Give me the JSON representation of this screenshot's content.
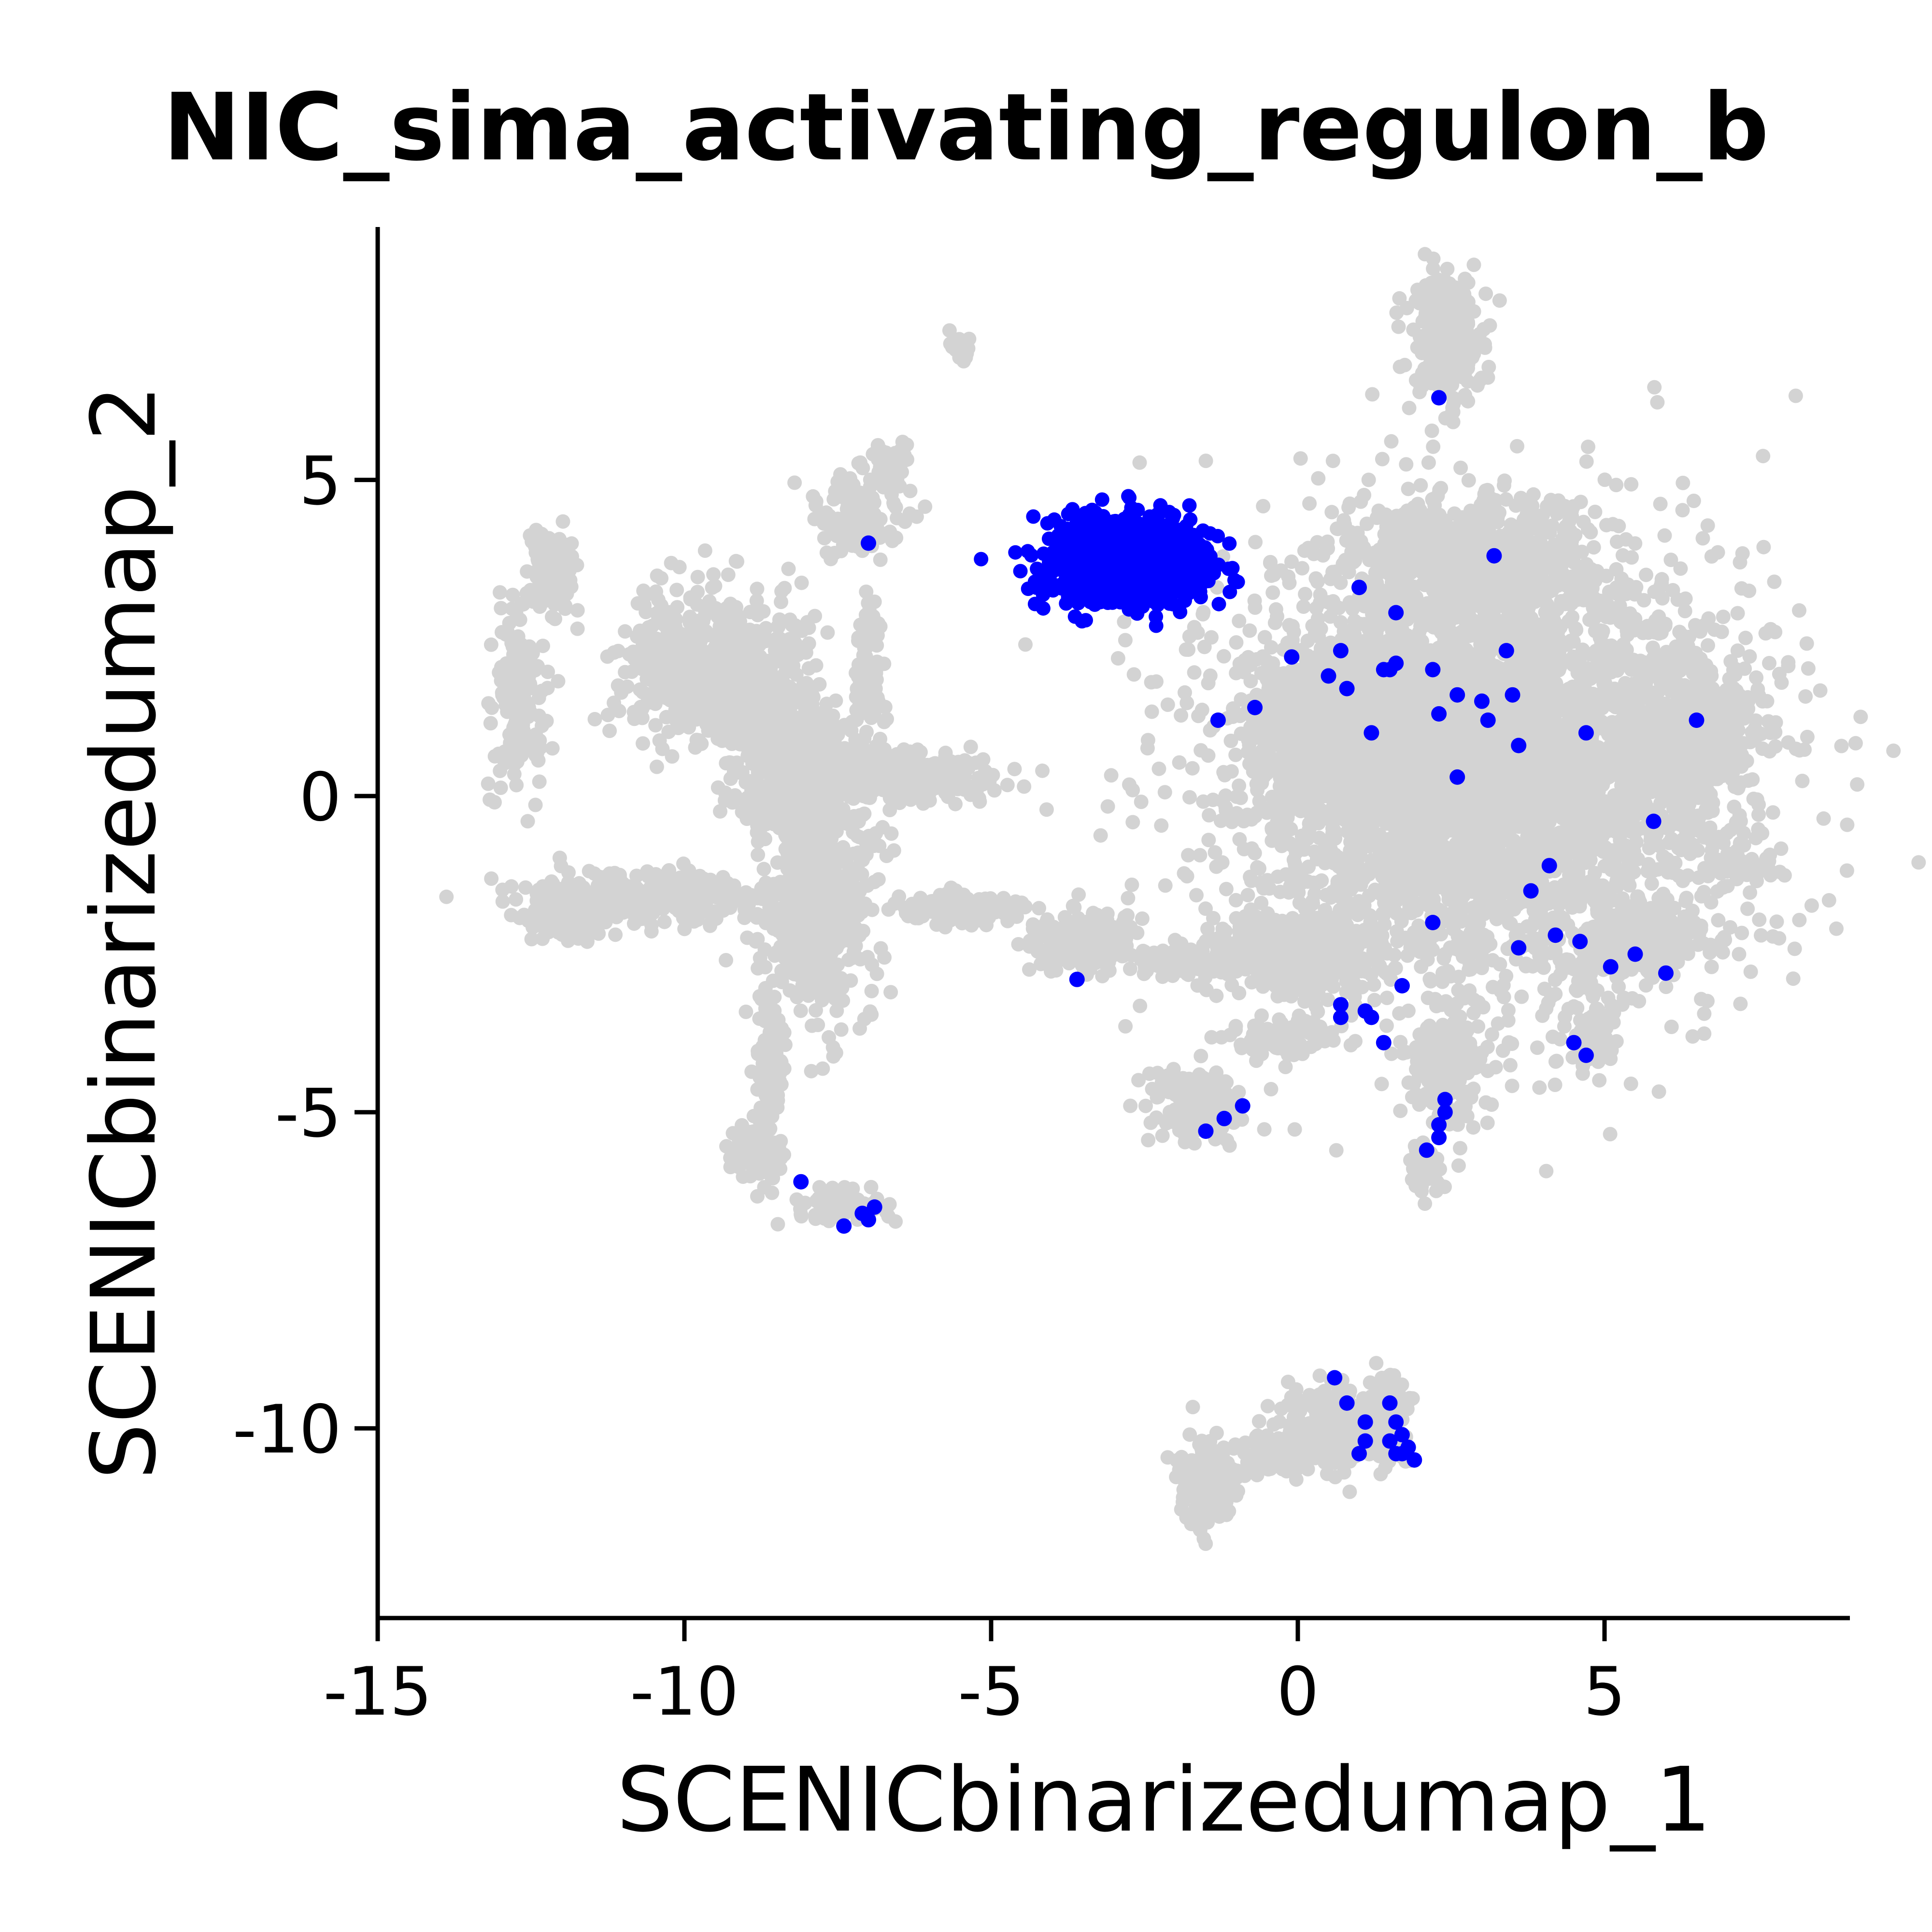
{
  "chart_data": {
    "type": "scatter",
    "title": "NIC_sima_activating_regulon_b",
    "xlabel": "SCENICbinarizedumap_1",
    "ylabel": "SCENICbinarizedumap_2",
    "xlim": [
      -15,
      9
    ],
    "ylim": [
      -13,
      9
    ],
    "x_ticks": [
      -15,
      -10,
      -5,
      0,
      5
    ],
    "x_tick_labels": [
      "-15",
      "-10",
      "-5",
      "0",
      "5"
    ],
    "y_ticks": [
      -10,
      -5,
      0,
      5
    ],
    "y_tick_labels": [
      "-10",
      "-5",
      "0",
      "5"
    ],
    "grid": false,
    "legend": "none",
    "colors": {
      "inactive": "#d3d3d3",
      "active": "#0000ff"
    },
    "series": [
      {
        "status": "inactive",
        "clusters": [
          {
            "cx": 2.4,
            "cy": 7.2,
            "rx": 0.55,
            "ry": 0.9,
            "n": 260
          },
          {
            "cx": -5.5,
            "cy": 7.1,
            "rx": 0.15,
            "ry": 0.25,
            "n": 25
          },
          {
            "cx": -7.2,
            "cy": 4.4,
            "rx": 0.7,
            "ry": 0.6,
            "n": 140
          },
          {
            "cx": -6.6,
            "cy": 5.3,
            "rx": 0.3,
            "ry": 0.3,
            "n": 40
          },
          {
            "cx": -12.2,
            "cy": 3.6,
            "rx": 0.35,
            "ry": 0.6,
            "n": 120
          },
          {
            "cx": -12.7,
            "cy": 1.5,
            "rx": 0.4,
            "ry": 1.2,
            "n": 180
          },
          {
            "cx": -9.5,
            "cy": 2.0,
            "rx": 1.3,
            "ry": 1.1,
            "n": 700
          },
          {
            "cx": -8.2,
            "cy": 0.5,
            "rx": 1.1,
            "ry": 1.0,
            "n": 500
          },
          {
            "cx": -7.8,
            "cy": -1.8,
            "rx": 0.8,
            "ry": 1.5,
            "n": 550
          },
          {
            "cx": -10.5,
            "cy": -1.6,
            "rx": 1.8,
            "ry": 0.35,
            "n": 320
          },
          {
            "cx": -12.0,
            "cy": -2.0,
            "rx": 0.6,
            "ry": 0.25,
            "n": 90
          },
          {
            "cx": -6.5,
            "cy": 0.3,
            "rx": 1.5,
            "ry": 0.35,
            "n": 260
          },
          {
            "cx": -7.0,
            "cy": 2.0,
            "rx": 0.2,
            "ry": 1.2,
            "n": 90
          },
          {
            "cx": -5.5,
            "cy": -1.8,
            "rx": 1.0,
            "ry": 0.25,
            "n": 120
          },
          {
            "cx": -3.5,
            "cy": -2.3,
            "rx": 0.8,
            "ry": 0.4,
            "n": 240
          },
          {
            "cx": -2.0,
            "cy": -2.6,
            "rx": 0.8,
            "ry": 0.2,
            "n": 100
          },
          {
            "cx": -8.6,
            "cy": -4.5,
            "rx": 0.2,
            "ry": 1.2,
            "n": 130
          },
          {
            "cx": -8.9,
            "cy": -5.6,
            "rx": 0.3,
            "ry": 0.4,
            "n": 70
          },
          {
            "cx": -7.5,
            "cy": -6.5,
            "rx": 0.8,
            "ry": 0.25,
            "n": 80
          },
          {
            "cx": -1.6,
            "cy": -4.9,
            "rx": 0.7,
            "ry": 0.5,
            "n": 150
          },
          {
            "cx": -0.2,
            "cy": -3.8,
            "rx": 0.7,
            "ry": 0.3,
            "n": 90
          },
          {
            "cx": 2.4,
            "cy": -4.3,
            "rx": 0.6,
            "ry": 0.9,
            "n": 170
          },
          {
            "cx": 2.1,
            "cy": -5.9,
            "rx": 0.25,
            "ry": 0.4,
            "n": 40
          },
          {
            "cx": 4.8,
            "cy": -3.8,
            "rx": 0.3,
            "ry": 0.4,
            "n": 60
          },
          {
            "cx": 3.0,
            "cy": 0.5,
            "rx": 3.6,
            "ry": 3.2,
            "n": 4200
          },
          {
            "cx": 0.6,
            "cy": 1.0,
            "rx": 1.2,
            "ry": 1.1,
            "n": 700
          },
          {
            "cx": 2.8,
            "cy": 3.8,
            "rx": 1.8,
            "ry": 0.8,
            "n": 600
          },
          {
            "cx": 6.3,
            "cy": 0.8,
            "rx": 1.0,
            "ry": 1.2,
            "n": 500
          },
          {
            "cx": 0.0,
            "cy": -2.5,
            "rx": 1.3,
            "ry": 0.5,
            "n": 350
          },
          {
            "cx": 5.6,
            "cy": -2.3,
            "rx": 1.0,
            "ry": 0.5,
            "n": 280
          },
          {
            "cx": 7.2,
            "cy": -1.1,
            "rx": 0.5,
            "ry": 0.2,
            "n": 40
          },
          {
            "cx": 0.6,
            "cy": -10.0,
            "rx": 0.8,
            "ry": 0.6,
            "n": 200
          },
          {
            "cx": -1.5,
            "cy": -10.8,
            "rx": 0.4,
            "ry": 0.6,
            "n": 180
          },
          {
            "cx": -0.4,
            "cy": -10.4,
            "rx": 0.6,
            "ry": 0.3,
            "n": 100
          },
          {
            "cx": 1.5,
            "cy": -9.8,
            "rx": 0.3,
            "ry": 0.6,
            "n": 80
          }
        ]
      },
      {
        "status": "active",
        "clusters": [
          {
            "cx": -2.8,
            "cy": 3.75,
            "rx": 1.05,
            "ry": 0.62,
            "n": 1300
          }
        ],
        "points": [
          [
            2.3,
            6.3
          ],
          [
            -7.0,
            4.0
          ],
          [
            -1.3,
            1.2
          ],
          [
            -0.7,
            1.4
          ],
          [
            -0.1,
            2.2
          ],
          [
            0.5,
            1.9
          ],
          [
            0.7,
            2.3
          ],
          [
            0.8,
            1.7
          ],
          [
            1.0,
            3.3
          ],
          [
            1.2,
            1.0
          ],
          [
            1.4,
            2.0
          ],
          [
            1.5,
            2.0
          ],
          [
            1.6,
            2.1
          ],
          [
            1.6,
            2.9
          ],
          [
            2.2,
            2.0
          ],
          [
            2.3,
            1.3
          ],
          [
            2.6,
            1.6
          ],
          [
            2.6,
            0.3
          ],
          [
            3.0,
            1.5
          ],
          [
            3.1,
            1.2
          ],
          [
            3.2,
            3.8
          ],
          [
            3.4,
            2.3
          ],
          [
            3.5,
            1.6
          ],
          [
            3.6,
            0.8
          ],
          [
            4.7,
            1.0
          ],
          [
            5.8,
            -0.4
          ],
          [
            6.5,
            1.2
          ],
          [
            3.8,
            -1.5
          ],
          [
            4.1,
            -1.1
          ],
          [
            4.2,
            -2.2
          ],
          [
            4.6,
            -2.3
          ],
          [
            3.6,
            -2.4
          ],
          [
            2.2,
            -2.0
          ],
          [
            5.1,
            -2.7
          ],
          [
            5.5,
            -2.5
          ],
          [
            6.0,
            -2.8
          ],
          [
            4.5,
            -3.9
          ],
          [
            4.7,
            -4.1
          ],
          [
            1.7,
            -3.0
          ],
          [
            1.4,
            -3.9
          ],
          [
            1.1,
            -3.4
          ],
          [
            1.2,
            -3.5
          ],
          [
            0.7,
            -3.3
          ],
          [
            0.7,
            -3.5
          ],
          [
            -3.6,
            -2.9
          ],
          [
            2.4,
            -4.8
          ],
          [
            2.3,
            -5.2
          ],
          [
            2.3,
            -5.4
          ],
          [
            2.1,
            -5.6
          ],
          [
            2.4,
            -5.0
          ],
          [
            -1.2,
            -5.1
          ],
          [
            -0.9,
            -4.9
          ],
          [
            -1.5,
            -5.3
          ],
          [
            -8.1,
            -6.1
          ],
          [
            -7.4,
            -6.8
          ],
          [
            -7.1,
            -6.6
          ],
          [
            -6.9,
            -6.5
          ],
          [
            -7.0,
            -6.7
          ],
          [
            0.6,
            -9.2
          ],
          [
            0.8,
            -9.6
          ],
          [
            1.1,
            -9.9
          ],
          [
            1.1,
            -10.2
          ],
          [
            1.0,
            -10.4
          ],
          [
            1.5,
            -9.6
          ],
          [
            1.6,
            -9.9
          ],
          [
            1.5,
            -10.2
          ],
          [
            1.7,
            -10.1
          ],
          [
            1.8,
            -10.3
          ],
          [
            1.7,
            -10.4
          ],
          [
            1.9,
            -10.5
          ],
          [
            1.6,
            -10.4
          ]
        ]
      }
    ]
  }
}
